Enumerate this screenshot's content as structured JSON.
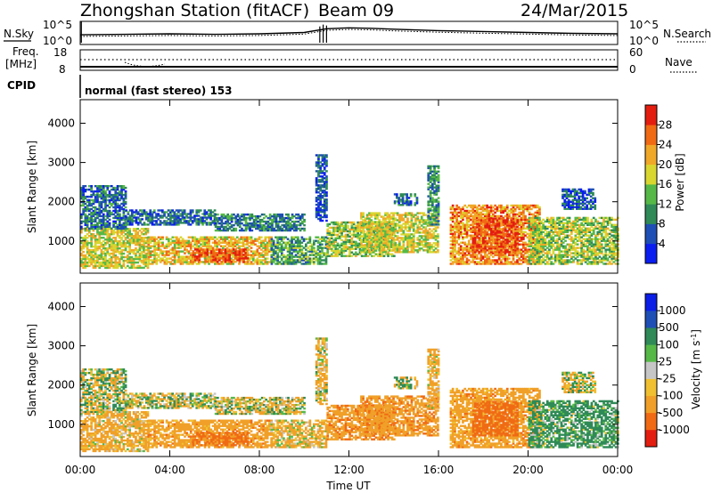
{
  "header": {
    "station": "Zhongshan Station (fitACF)",
    "beam": "Beam 09",
    "date": "24/Mar/2015"
  },
  "summary_panels": {
    "nsky_label": "N.Sky",
    "nsearch_label": "N.Search",
    "noise_ticks": [
      "10^5",
      "10^0"
    ],
    "freq_label_1": "Freq.",
    "freq_label_2": "[MHz]",
    "freq_ticks": [
      "18",
      "8"
    ],
    "nave_label": "Nave",
    "nave_ticks": [
      "60",
      "0"
    ],
    "cpid_label": "CPID",
    "cpid_value": "normal (fast stereo) 153"
  },
  "colorbars": {
    "power": {
      "label": "Power [dB]",
      "ticks": [
        "28",
        "24",
        "20",
        "16",
        "12",
        "8",
        "4"
      ],
      "colors": [
        "#0a1ef0",
        "#1e4fb4",
        "#2f8a57",
        "#56b947",
        "#d9d630",
        "#f0a828",
        "#f06a14",
        "#e31e10"
      ]
    },
    "velocity": {
      "label": "Velocity [m s",
      "label_sup": "-1",
      "label_end": "]",
      "ticks": [
        "1000",
        "500",
        "100",
        "25",
        "-25",
        "-100",
        "-500",
        "-1000"
      ],
      "colors": [
        "#0a1ee6",
        "#1e4fb4",
        "#2f8a57",
        "#56b947",
        "#c6c6c6",
        "#f0c030",
        "#f0a028",
        "#f06a14",
        "#e31e10"
      ]
    }
  },
  "chart_data": {
    "type": "heatmap",
    "x_axis": {
      "label": "Time UT",
      "ticks": [
        "00:00",
        "04:00",
        "08:00",
        "12:00",
        "16:00",
        "20:00",
        "00:00"
      ],
      "range_hours": [
        0,
        24
      ]
    },
    "y_axis": {
      "label": "Slant Range [km]",
      "ticks": [
        "1000",
        "2000",
        "3000",
        "4000"
      ],
      "range_km": [
        180,
        4600
      ]
    },
    "freq_mhz": {
      "range": [
        8,
        18
      ],
      "channel_a": 12,
      "channel_b": 9
    },
    "scatter_regions": [
      {
        "t0": 0.0,
        "t1": 3.0,
        "r0": 300,
        "r1": 1300,
        "power": 18,
        "velocity": -200
      },
      {
        "t0": 0.0,
        "t1": 2.0,
        "r0": 1300,
        "r1": 2400,
        "power": 8,
        "velocity": 10
      },
      {
        "t0": 2.0,
        "t1": 6.0,
        "r0": 1400,
        "r1": 1800,
        "power": 8,
        "velocity": 0
      },
      {
        "t0": 3.0,
        "t1": 8.5,
        "r0": 400,
        "r1": 1100,
        "power": 20,
        "velocity": -300
      },
      {
        "t0": 5.0,
        "t1": 7.5,
        "r0": 450,
        "r1": 800,
        "power": 28,
        "velocity": -600
      },
      {
        "t0": 6.0,
        "t1": 10.0,
        "r0": 1250,
        "r1": 1700,
        "power": 9,
        "velocity": -30
      },
      {
        "t0": 8.5,
        "t1": 11.0,
        "r0": 400,
        "r1": 1100,
        "power": 12,
        "velocity": -150
      },
      {
        "t0": 11.0,
        "t1": 14.0,
        "r0": 600,
        "r1": 1500,
        "power": 16,
        "velocity": -400
      },
      {
        "t0": 12.5,
        "t1": 16.0,
        "r0": 700,
        "r1": 1700,
        "power": 18,
        "velocity": -350
      },
      {
        "t0": 14.0,
        "t1": 15.0,
        "r0": 1900,
        "r1": 2200,
        "power": 7,
        "velocity": 50
      },
      {
        "t0": 16.5,
        "t1": 20.5,
        "r0": 400,
        "r1": 1900,
        "power": 24,
        "velocity": -300
      },
      {
        "t0": 17.5,
        "t1": 19.5,
        "r0": 700,
        "r1": 1600,
        "power": 28,
        "velocity": -700
      },
      {
        "t0": 20.0,
        "t1": 24.0,
        "r0": 400,
        "r1": 1600,
        "power": 16,
        "velocity": 200
      },
      {
        "t0": 21.5,
        "t1": 23.0,
        "r0": 1800,
        "r1": 2300,
        "power": 6,
        "velocity": -30
      },
      {
        "t0": 10.5,
        "t1": 11.0,
        "r0": 1500,
        "r1": 3200,
        "power": 6,
        "velocity": -80
      },
      {
        "t0": 15.5,
        "t1": 16.0,
        "r0": 1400,
        "r1": 2900,
        "power": 10,
        "velocity": -200
      }
    ],
    "nsky_trace_log10": [
      {
        "t": 0,
        "v": 2.1
      },
      {
        "t": 2,
        "v": 2.2
      },
      {
        "t": 4,
        "v": 2.3
      },
      {
        "t": 6,
        "v": 2.2
      },
      {
        "t": 8,
        "v": 2.3
      },
      {
        "t": 10,
        "v": 2.6
      },
      {
        "t": 11,
        "v": 3.4
      },
      {
        "t": 12,
        "v": 3.6
      },
      {
        "t": 13,
        "v": 3.5
      },
      {
        "t": 14,
        "v": 3.3
      },
      {
        "t": 16,
        "v": 3.0
      },
      {
        "t": 18,
        "v": 2.8
      },
      {
        "t": 20,
        "v": 2.6
      },
      {
        "t": 22,
        "v": 2.4
      },
      {
        "t": 24,
        "v": 2.3
      }
    ]
  }
}
